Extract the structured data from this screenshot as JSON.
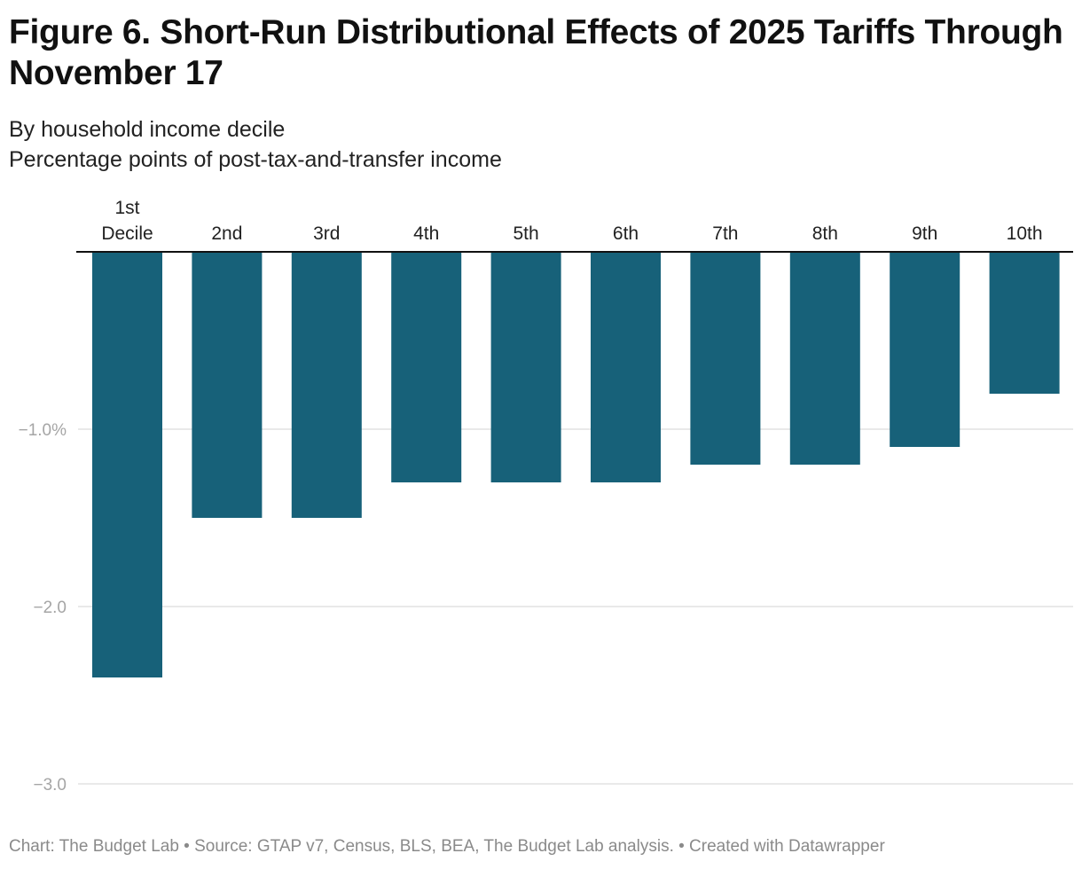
{
  "chart_data": {
    "type": "bar",
    "title": "Figure 6. Short-Run Distributional Effects of 2025 Tariffs Through November 17",
    "subtitle": [
      "By household income decile",
      "Percentage points of post-tax-and-transfer income"
    ],
    "categories": [
      [
        "1st",
        "Decile"
      ],
      [
        "2nd"
      ],
      [
        "3rd"
      ],
      [
        "4th"
      ],
      [
        "5th"
      ],
      [
        "6th"
      ],
      [
        "7th"
      ],
      [
        "8th"
      ],
      [
        "9th"
      ],
      [
        "10th"
      ]
    ],
    "values": [
      -2.4,
      -1.5,
      -1.5,
      -1.3,
      -1.3,
      -1.3,
      -1.2,
      -1.2,
      -1.1,
      -0.8
    ],
    "ylim": [
      -3.0,
      0
    ],
    "yticks": [
      {
        "value": -1.0,
        "label": "-1.0%"
      },
      {
        "value": -2.0,
        "label": "-2.0"
      },
      {
        "value": -3.0,
        "label": "-3.0"
      }
    ],
    "grid": true,
    "category_labels_position": "top",
    "bar_color": "#176179",
    "xlabel": "",
    "ylabel": ""
  },
  "footer": "Chart: The Budget Lab • Source: GTAP v7, Census, BLS, BEA, The Budget Lab analysis. • Created with Datawrapper"
}
